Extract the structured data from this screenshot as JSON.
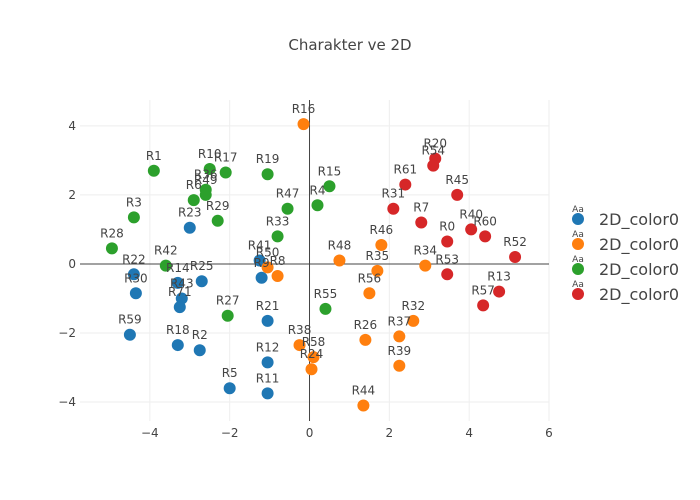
{
  "chart_data": {
    "type": "scatter",
    "title": "Charakter ve 2D",
    "xlabel": "",
    "ylabel": "",
    "xlim": [
      -5.75,
      6.0
    ],
    "ylim": [
      -4.55,
      4.75
    ],
    "x_ticks": [
      -4,
      -2,
      0,
      2,
      4,
      6
    ],
    "y_ticks": [
      -4,
      -2,
      0,
      2,
      4
    ],
    "grid": true,
    "legend": "right",
    "legend_symbol_text": "Aa",
    "series": [
      {
        "name": "2D_color0",
        "color": "#1f77b4",
        "points": [
          {
            "label": "R23",
            "x": -3.0,
            "y": 1.05
          },
          {
            "label": "R22",
            "x": -4.4,
            "y": -0.3
          },
          {
            "label": "R30",
            "x": -4.35,
            "y": -0.85
          },
          {
            "label": "R14",
            "x": -3.3,
            "y": -0.55
          },
          {
            "label": "R43",
            "x": -3.2,
            "y": -1.0
          },
          {
            "label": "R71",
            "x": -3.25,
            "y": -1.25
          },
          {
            "label": "R25",
            "x": -2.7,
            "y": -0.5
          },
          {
            "label": "R59",
            "x": -4.5,
            "y": -2.05
          },
          {
            "label": "R18",
            "x": -3.3,
            "y": -2.35
          },
          {
            "label": "R2",
            "x": -2.75,
            "y": -2.5
          },
          {
            "label": "R5",
            "x": -2.0,
            "y": -3.6
          },
          {
            "label": "R41",
            "x": -1.25,
            "y": 0.1
          },
          {
            "label": "R9",
            "x": -1.2,
            "y": -0.4
          },
          {
            "label": "R21",
            "x": -1.05,
            "y": -1.65
          },
          {
            "label": "R12",
            "x": -1.05,
            "y": -2.85
          },
          {
            "label": "R11",
            "x": -1.05,
            "y": -3.75
          }
        ]
      },
      {
        "name": "2D_color0",
        "color": "#ff7f0e",
        "points": [
          {
            "label": "R16",
            "x": -0.15,
            "y": 4.05
          },
          {
            "label": "R50",
            "x": -1.05,
            "y": -0.1
          },
          {
            "label": "R8",
            "x": -0.8,
            "y": -0.35
          },
          {
            "label": "R48",
            "x": 0.75,
            "y": 0.1
          },
          {
            "label": "R46",
            "x": 1.8,
            "y": 0.55
          },
          {
            "label": "R35",
            "x": 1.7,
            "y": -0.2
          },
          {
            "label": "R56",
            "x": 1.5,
            "y": -0.85
          },
          {
            "label": "R34",
            "x": 2.9,
            "y": -0.05
          },
          {
            "label": "R38",
            "x": -0.25,
            "y": -2.35
          },
          {
            "label": "R58",
            "x": 0.1,
            "y": -2.7
          },
          {
            "label": "R24",
            "x": 0.05,
            "y": -3.05
          },
          {
            "label": "R26",
            "x": 1.4,
            "y": -2.2
          },
          {
            "label": "R37",
            "x": 2.25,
            "y": -2.1
          },
          {
            "label": "R32",
            "x": 2.6,
            "y": -1.65
          },
          {
            "label": "R39",
            "x": 2.25,
            "y": -2.95
          },
          {
            "label": "R44",
            "x": 1.35,
            "y": -4.1
          }
        ]
      },
      {
        "name": "2D_color0",
        "color": "#2ca02c",
        "points": [
          {
            "label": "R1",
            "x": -3.9,
            "y": 2.7
          },
          {
            "label": "R3",
            "x": -4.4,
            "y": 1.35
          },
          {
            "label": "R28",
            "x": -4.95,
            "y": 0.45
          },
          {
            "label": "R42",
            "x": -3.6,
            "y": -0.05
          },
          {
            "label": "R10",
            "x": -2.5,
            "y": 2.75
          },
          {
            "label": "R17",
            "x": -2.1,
            "y": 2.65
          },
          {
            "label": "R6",
            "x": -2.9,
            "y": 1.85
          },
          {
            "label": "R36",
            "x": -2.6,
            "y": 2.15
          },
          {
            "label": "R49",
            "x": -2.6,
            "y": 2.0
          },
          {
            "label": "R29",
            "x": -2.3,
            "y": 1.25
          },
          {
            "label": "R27",
            "x": -2.05,
            "y": -1.5
          },
          {
            "label": "R19",
            "x": -1.05,
            "y": 2.6
          },
          {
            "label": "R47",
            "x": -0.55,
            "y": 1.6
          },
          {
            "label": "R33",
            "x": -0.8,
            "y": 0.8
          },
          {
            "label": "R4",
            "x": 0.2,
            "y": 1.7
          },
          {
            "label": "R15",
            "x": 0.5,
            "y": 2.25
          },
          {
            "label": "R55",
            "x": 0.4,
            "y": -1.3
          }
        ]
      },
      {
        "name": "2D_color0",
        "color": "#d62728",
        "points": [
          {
            "label": "R20",
            "x": 3.15,
            "y": 3.05
          },
          {
            "label": "R54",
            "x": 3.1,
            "y": 2.85
          },
          {
            "label": "R61",
            "x": 2.4,
            "y": 2.3
          },
          {
            "label": "R45",
            "x": 3.7,
            "y": 2.0
          },
          {
            "label": "R31",
            "x": 2.1,
            "y": 1.6
          },
          {
            "label": "R7",
            "x": 2.8,
            "y": 1.2
          },
          {
            "label": "R40",
            "x": 4.05,
            "y": 1.0
          },
          {
            "label": "R60",
            "x": 4.4,
            "y": 0.8
          },
          {
            "label": "R0",
            "x": 3.45,
            "y": 0.65
          },
          {
            "label": "R52",
            "x": 5.15,
            "y": 0.2
          },
          {
            "label": "R53",
            "x": 3.45,
            "y": -0.3
          },
          {
            "label": "R13",
            "x": 4.75,
            "y": -0.8
          },
          {
            "label": "R57",
            "x": 4.35,
            "y": -1.2
          }
        ]
      }
    ]
  }
}
